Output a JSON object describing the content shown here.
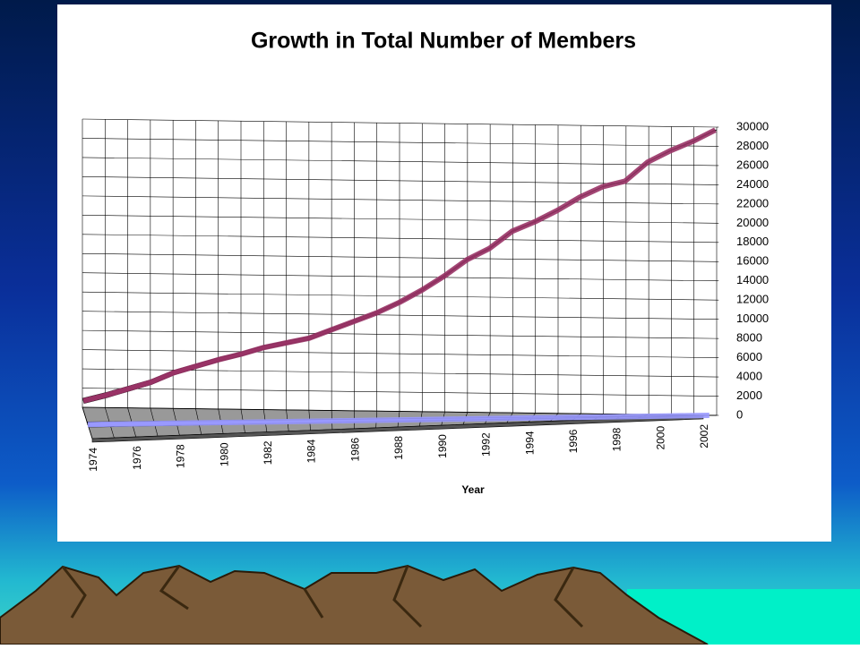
{
  "chart_data": {
    "type": "line",
    "title": "Growth in Total Number of Members",
    "x_label": "Year",
    "categories": [
      "1974",
      null,
      "1976",
      null,
      "1978",
      null,
      "1980",
      null,
      "1982",
      null,
      "1984",
      null,
      "1986",
      null,
      "1988",
      null,
      "1990",
      null,
      "1992",
      null,
      "1994",
      null,
      "1996",
      null,
      "1998",
      null,
      "2000",
      null,
      "2002"
    ],
    "series": [
      {
        "color": "#993366",
        "values": [
          1000,
          1600,
          2300,
          3000,
          4000,
          4700,
          5400,
          6000,
          6700,
          7200,
          7700,
          8600,
          9500,
          10400,
          11500,
          12800,
          14300,
          16000,
          17200,
          19000,
          20000,
          21200,
          22600,
          23700,
          24300,
          26300,
          27500,
          28500,
          29700
        ]
      },
      {
        "color": "#9999ff",
        "values": [
          0,
          0,
          0,
          0,
          0,
          0,
          0,
          0,
          0,
          0,
          0,
          0,
          0,
          0,
          0,
          0,
          0,
          0,
          0,
          0,
          0,
          0,
          0,
          0,
          0,
          0,
          0,
          0,
          0
        ]
      }
    ],
    "ylim": [
      0,
      30000
    ],
    "yticks": [
      0,
      2000,
      4000,
      6000,
      8000,
      10000,
      12000,
      14000,
      16000,
      18000,
      20000,
      22000,
      24000,
      26000,
      28000,
      30000
    ],
    "grid": true
  }
}
